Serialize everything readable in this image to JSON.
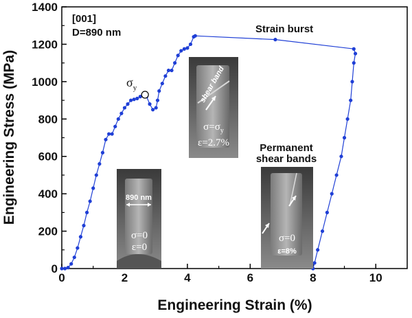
{
  "chart_data": {
    "type": "scatter",
    "title": "",
    "xlabel": "Engineering Strain (%)",
    "ylabel": "Engineering Stress (MPa)",
    "xlim": [
      0,
      11
    ],
    "ylim": [
      0,
      1400
    ],
    "xticks": [
      0,
      2,
      4,
      6,
      8,
      10
    ],
    "yticks": [
      0,
      200,
      400,
      600,
      800,
      1000,
      1200,
      1400
    ],
    "grid": false,
    "color": "#1f3fd6",
    "sample_info": [
      "[001]",
      "D=890 nm"
    ],
    "annotations": {
      "strain_burst": "Strain burst",
      "yield_symbol": "σ",
      "yield_subscript": "y",
      "permanent_shear_bands_line1": "Permanent",
      "permanent_shear_bands_line2": "shear bands"
    },
    "yield_point": {
      "x": 2.65,
      "y": 930
    },
    "series": [
      {
        "points": [
          [
            0.0,
            0
          ],
          [
            0.1,
            0
          ],
          [
            0.2,
            5
          ],
          [
            0.3,
            25
          ],
          [
            0.4,
            60
          ],
          [
            0.5,
            110
          ],
          [
            0.6,
            170
          ],
          [
            0.7,
            230
          ],
          [
            0.8,
            300
          ],
          [
            0.9,
            360
          ],
          [
            1.0,
            430
          ],
          [
            1.1,
            500
          ],
          [
            1.2,
            560
          ],
          [
            1.3,
            620
          ],
          [
            1.4,
            690
          ],
          [
            1.5,
            720
          ],
          [
            1.6,
            720
          ],
          [
            1.7,
            760
          ],
          [
            1.8,
            800
          ],
          [
            1.9,
            830
          ],
          [
            2.0,
            860
          ],
          [
            2.1,
            880
          ],
          [
            2.2,
            900
          ],
          [
            2.3,
            905
          ],
          [
            2.4,
            910
          ],
          [
            2.5,
            920
          ],
          [
            2.6,
            925
          ],
          [
            2.65,
            930
          ],
          [
            2.7,
            920
          ],
          [
            2.8,
            880
          ],
          [
            2.9,
            850
          ],
          [
            3.0,
            860
          ],
          [
            3.05,
            900
          ],
          [
            3.1,
            950
          ],
          [
            3.2,
            990
          ],
          [
            3.3,
            1030
          ],
          [
            3.4,
            1060
          ],
          [
            3.5,
            1060
          ],
          [
            3.6,
            1100
          ],
          [
            3.7,
            1140
          ],
          [
            3.8,
            1165
          ],
          [
            3.9,
            1175
          ],
          [
            4.0,
            1180
          ],
          [
            4.1,
            1200
          ],
          [
            4.2,
            1240
          ],
          [
            4.25,
            1245
          ],
          [
            6.8,
            1225
          ],
          [
            9.3,
            1175
          ],
          [
            9.35,
            1150
          ],
          [
            9.3,
            1100
          ],
          [
            9.25,
            1000
          ],
          [
            9.2,
            900
          ],
          [
            9.1,
            800
          ],
          [
            9.0,
            700
          ],
          [
            8.9,
            600
          ],
          [
            8.75,
            500
          ],
          [
            8.6,
            400
          ],
          [
            8.45,
            300
          ],
          [
            8.3,
            200
          ],
          [
            8.15,
            100
          ],
          [
            8.05,
            30
          ],
          [
            8.0,
            0
          ]
        ]
      }
    ]
  },
  "insets": [
    {
      "lines": [
        "σ=0",
        "ε=0"
      ],
      "dim_label": "890 nm"
    },
    {
      "lines": [
        "σ=σ",
        "ε=2.7%"
      ],
      "sub": "y",
      "label": "shear band"
    },
    {
      "lines": [
        "σ=0",
        "ε=8%"
      ]
    }
  ]
}
